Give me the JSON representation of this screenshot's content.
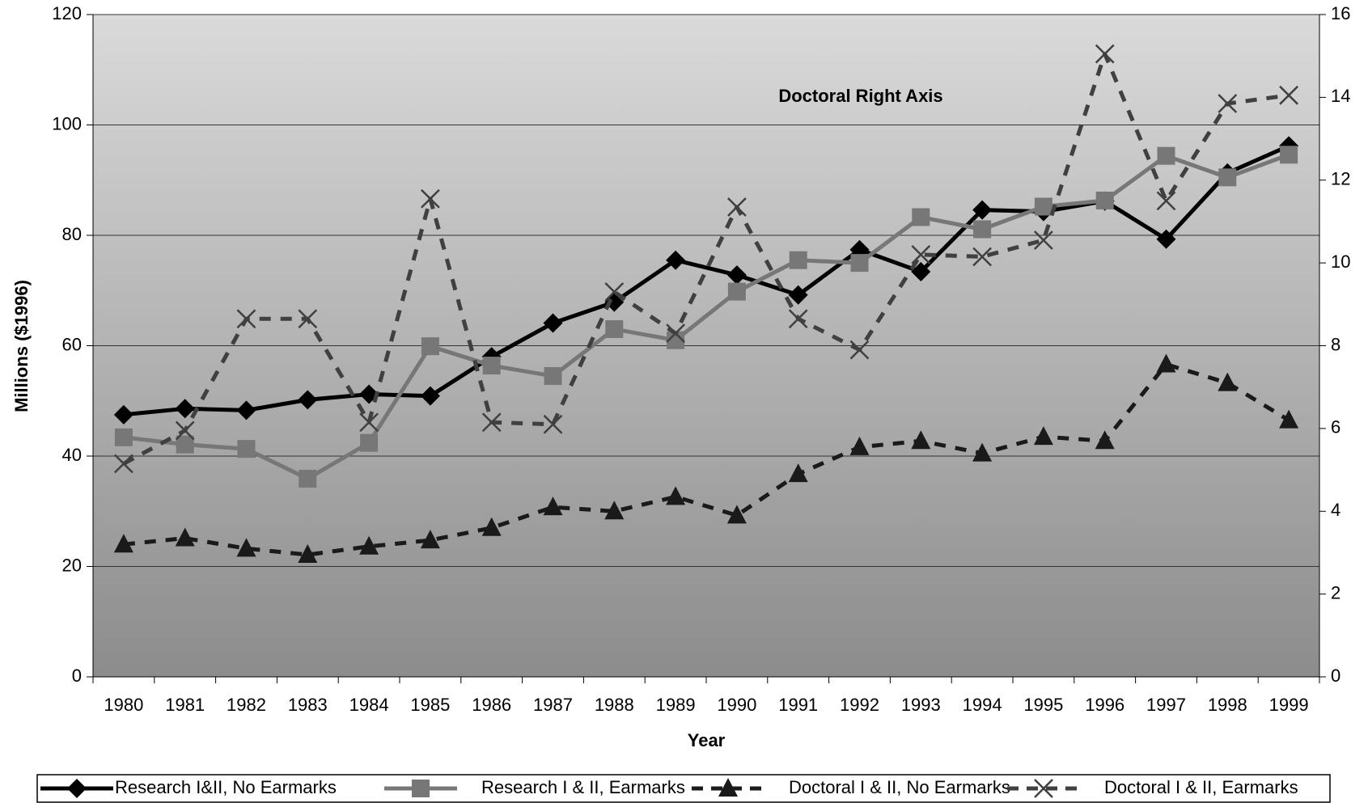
{
  "chart_data": {
    "type": "line",
    "x_label": "Year",
    "y_label": "Millions ($1996)",
    "annotation": "Doctoral Right Axis",
    "categories": [
      "1980",
      "1981",
      "1982",
      "1983",
      "1984",
      "1985",
      "1986",
      "1987",
      "1988",
      "1989",
      "1990",
      "1991",
      "1992",
      "1993",
      "1994",
      "1995",
      "1996",
      "1997",
      "1998",
      "1999"
    ],
    "ylim": [
      0,
      120
    ],
    "yticks": [
      0,
      20,
      40,
      60,
      80,
      100,
      120
    ],
    "y2lim": [
      0,
      16
    ],
    "y2ticks": [
      0,
      2,
      4,
      6,
      8,
      10,
      12,
      14,
      16
    ],
    "grid": true,
    "legend": "bottom",
    "series": [
      {
        "name": "Research I&II, No Earmarks",
        "color": "#000000",
        "line_style": "solid",
        "marker": "diamond",
        "values": [
          47.5,
          48.6,
          48.3,
          50.2,
          51.2,
          50.9,
          58.0,
          64.1,
          67.9,
          75.5,
          72.8,
          69.2,
          77.4,
          73.4,
          84.6,
          84.3,
          86.2,
          79.3,
          91.3,
          96.2
        ]
      },
      {
        "name": "Research I & II, Earmarks",
        "color": "#777777",
        "line_style": "solid",
        "marker": "square",
        "values": [
          43.4,
          42.1,
          41.3,
          35.9,
          42.4,
          59.9,
          56.4,
          54.5,
          63.0,
          61.0,
          69.8,
          75.5,
          75.0,
          83.3,
          81.1,
          85.2,
          86.3,
          94.4,
          90.5,
          94.6
        ]
      },
      {
        "name": "Doctoral I & II, No Earmarks",
        "color": "#1a1a1a",
        "line_style": "dashed",
        "marker": "triangle",
        "axis": "y2",
        "values": [
          3.2,
          3.35,
          3.1,
          2.95,
          3.15,
          3.3,
          3.6,
          4.1,
          4.0,
          4.35,
          3.9,
          4.9,
          5.55,
          5.7,
          5.4,
          5.8,
          5.7,
          7.55,
          7.1,
          6.2
        ]
      },
      {
        "name": "Doctoral I & II, Earmarks",
        "color": "#404040",
        "line_style": "dashed",
        "marker": "x",
        "axis": "y2",
        "values": [
          5.15,
          5.95,
          8.65,
          8.65,
          6.15,
          11.55,
          6.15,
          6.1,
          9.3,
          8.3,
          11.35,
          8.65,
          7.9,
          10.2,
          10.15,
          10.55,
          15.05,
          11.5,
          13.85,
          14.05
        ]
      }
    ]
  }
}
